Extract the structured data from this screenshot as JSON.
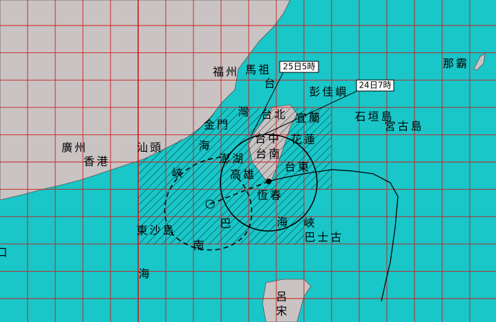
{
  "labels": [
    "福州",
    "馬祖",
    "25日5時",
    "24日7時",
    "彭佳嶼",
    "台",
    "灣",
    "台北",
    "宜蘭",
    "石垣島",
    "宮古島",
    "那霸",
    "金門",
    "海",
    "峽",
    "廣州",
    "汕頭",
    "香港",
    "台中",
    "花蓮",
    "台南",
    "澎湖",
    "台東",
    "高雄",
    "恆春",
    "東沙島",
    "巴",
    "海",
    "峽",
    "巴士古",
    "南",
    "海",
    "呂",
    "宋",
    "口"
  ]
}
